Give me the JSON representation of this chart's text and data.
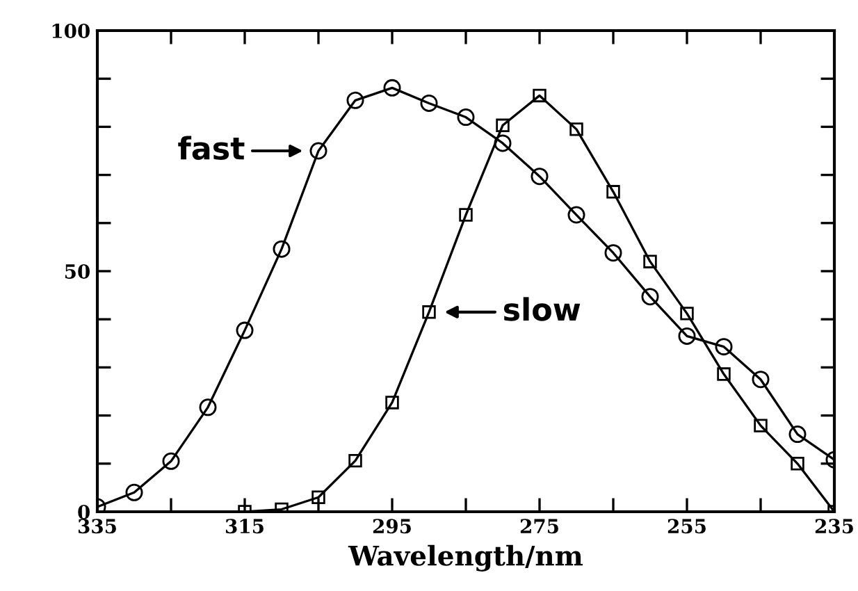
{
  "chart_data": {
    "type": "line",
    "xlabel": "Wavelength/nm",
    "xlim": [
      335,
      235
    ],
    "ylim": [
      0,
      100
    ],
    "xticks": [
      335,
      {
        "value": 325,
        "label": null
      },
      315,
      {
        "value": 305,
        "label": null
      },
      295,
      {
        "value": 285,
        "label": null
      },
      275,
      {
        "value": 265,
        "label": null
      },
      255,
      {
        "value": 245,
        "label": null
      },
      235
    ],
    "yticks": [
      0,
      {
        "value": 10,
        "label": null
      },
      {
        "value": 20,
        "label": null
      },
      {
        "value": 30,
        "label": null
      },
      {
        "value": 40,
        "label": null
      },
      50,
      {
        "value": 60,
        "label": null
      },
      {
        "value": 70,
        "label": null
      },
      {
        "value": 80,
        "label": null
      },
      {
        "value": 90,
        "label": null
      },
      100
    ],
    "grid": false,
    "legend": false,
    "line_style": "solid",
    "series": [
      {
        "color": "#000000",
        "marker": "circle",
        "x": [
          335,
          330,
          325,
          320,
          315,
          310,
          305,
          300,
          295,
          290,
          285,
          280,
          275,
          270,
          265,
          260,
          255,
          250,
          245,
          240,
          235
        ],
        "values": [
          1,
          4,
          10.5,
          21.7,
          37.7,
          54.6,
          75,
          85.5,
          88.1,
          84.9,
          82,
          76.6,
          69.7,
          61.7,
          53.8,
          44.7,
          36.5,
          34.3,
          27.5,
          16.1,
          10.8
        ]
      },
      {
        "color": "#000000",
        "marker": "square",
        "x": [
          315,
          310,
          305,
          300,
          295,
          290,
          285,
          280,
          275,
          270,
          265,
          260,
          255,
          250,
          245,
          240,
          235
        ],
        "values": [
          0,
          0.5,
          3,
          10.6,
          22.7,
          41.5,
          61.7,
          80.3,
          86.5,
          79.5,
          66.5,
          52,
          41.2,
          28.6,
          17.9,
          10,
          0
        ]
      }
    ],
    "annotations": [
      {
        "text": "fast",
        "x": 305,
        "y": 75
      },
      {
        "text": "slow",
        "x": 290,
        "y": 41.5
      }
    ]
  }
}
